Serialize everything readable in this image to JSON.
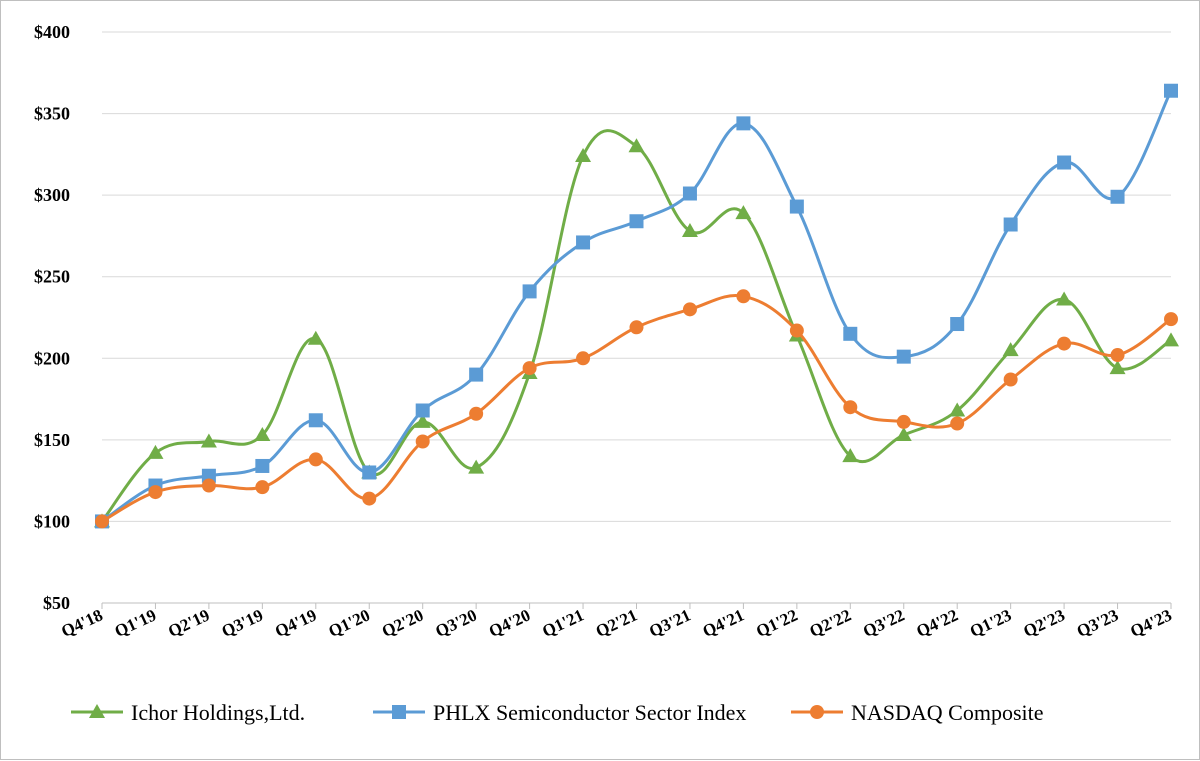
{
  "chart_data": {
    "type": "line",
    "title": "",
    "xlabel": "",
    "ylabel": "",
    "ylim": [
      50,
      400
    ],
    "y_ticks": [
      "$50",
      "$100",
      "$150",
      "$200",
      "$250",
      "$300",
      "$350",
      "$400"
    ],
    "y_tick_values": [
      50,
      100,
      150,
      200,
      250,
      300,
      350,
      400
    ],
    "categories": [
      "Q4'18",
      "Q1'19",
      "Q2'19",
      "Q3'19",
      "Q4'19",
      "Q1'20",
      "Q2'20",
      "Q3'20",
      "Q4'20",
      "Q1'21",
      "Q2'21",
      "Q3'21",
      "Q4'21",
      "Q1'22",
      "Q2'22",
      "Q3'22",
      "Q4'22",
      "Q1'23",
      "Q2'23",
      "Q3'23",
      "Q4'23"
    ],
    "legend_position": "bottom",
    "series": [
      {
        "name": "Ichor Holdings,Ltd.",
        "color": "#70ad47",
        "marker": "triangle",
        "values": [
          100,
          142,
          149,
          153,
          212,
          130,
          161,
          133,
          191,
          324,
          330,
          278,
          289,
          214,
          140,
          153,
          168,
          205,
          236,
          194,
          211
        ]
      },
      {
        "name": "PHLX Semiconductor Sector Index",
        "color": "#5b9bd5",
        "marker": "square",
        "values": [
          100,
          122,
          128,
          134,
          162,
          130,
          168,
          190,
          241,
          271,
          284,
          301,
          344,
          293,
          215,
          201,
          221,
          282,
          320,
          299,
          364
        ]
      },
      {
        "name": "NASDAQ Composite",
        "color": "#ed7d31",
        "marker": "circle",
        "values": [
          100,
          118,
          122,
          121,
          138,
          114,
          149,
          166,
          194,
          200,
          219,
          230,
          238,
          217,
          170,
          161,
          160,
          187,
          209,
          202,
          224
        ]
      }
    ]
  }
}
